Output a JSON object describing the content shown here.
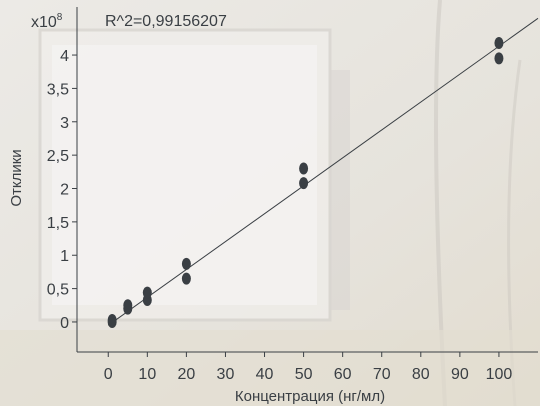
{
  "chart_data": {
    "type": "scatter",
    "title": "",
    "annotation": "R^2=0,99156207",
    "y_multiplier": "x10",
    "y_multiplier_exp": "8",
    "xlabel": "Концентрация (нг/мл)",
    "ylabel": "Отклики",
    "xlim": [
      -8,
      110
    ],
    "ylim": [
      -0.45,
      4.72
    ],
    "x_ticks": [
      0,
      10,
      20,
      30,
      40,
      50,
      60,
      70,
      80,
      90,
      100
    ],
    "x_tick_labels": [
      "0",
      "10",
      "20",
      "30",
      "40",
      "50",
      "60",
      "70",
      "80",
      "90",
      "100"
    ],
    "y_ticks": [
      0,
      0.5,
      1,
      1.5,
      2,
      2.5,
      3,
      3.5,
      4
    ],
    "y_tick_labels": [
      "0",
      "0,5",
      "1",
      "1,5",
      "2",
      "2,5",
      "3",
      "3,5",
      "4"
    ],
    "grid": false,
    "series": [
      {
        "points": [
          [
            1,
            0.0
          ],
          [
            1,
            0.03
          ],
          [
            5,
            0.2
          ],
          [
            5,
            0.25
          ],
          [
            10,
            0.33
          ],
          [
            10,
            0.44
          ],
          [
            20,
            0.65
          ],
          [
            20,
            0.87
          ],
          [
            50,
            2.08
          ],
          [
            50,
            2.3
          ],
          [
            100,
            3.95
          ],
          [
            100,
            4.18
          ]
        ]
      }
    ],
    "fit_line": {
      "x": [
        0,
        110
      ],
      "y": [
        -0.05,
        4.55
      ]
    },
    "colors": {
      "points": "#3a3f44",
      "axes": "#3a3f44",
      "text": "#3a3f44"
    }
  }
}
